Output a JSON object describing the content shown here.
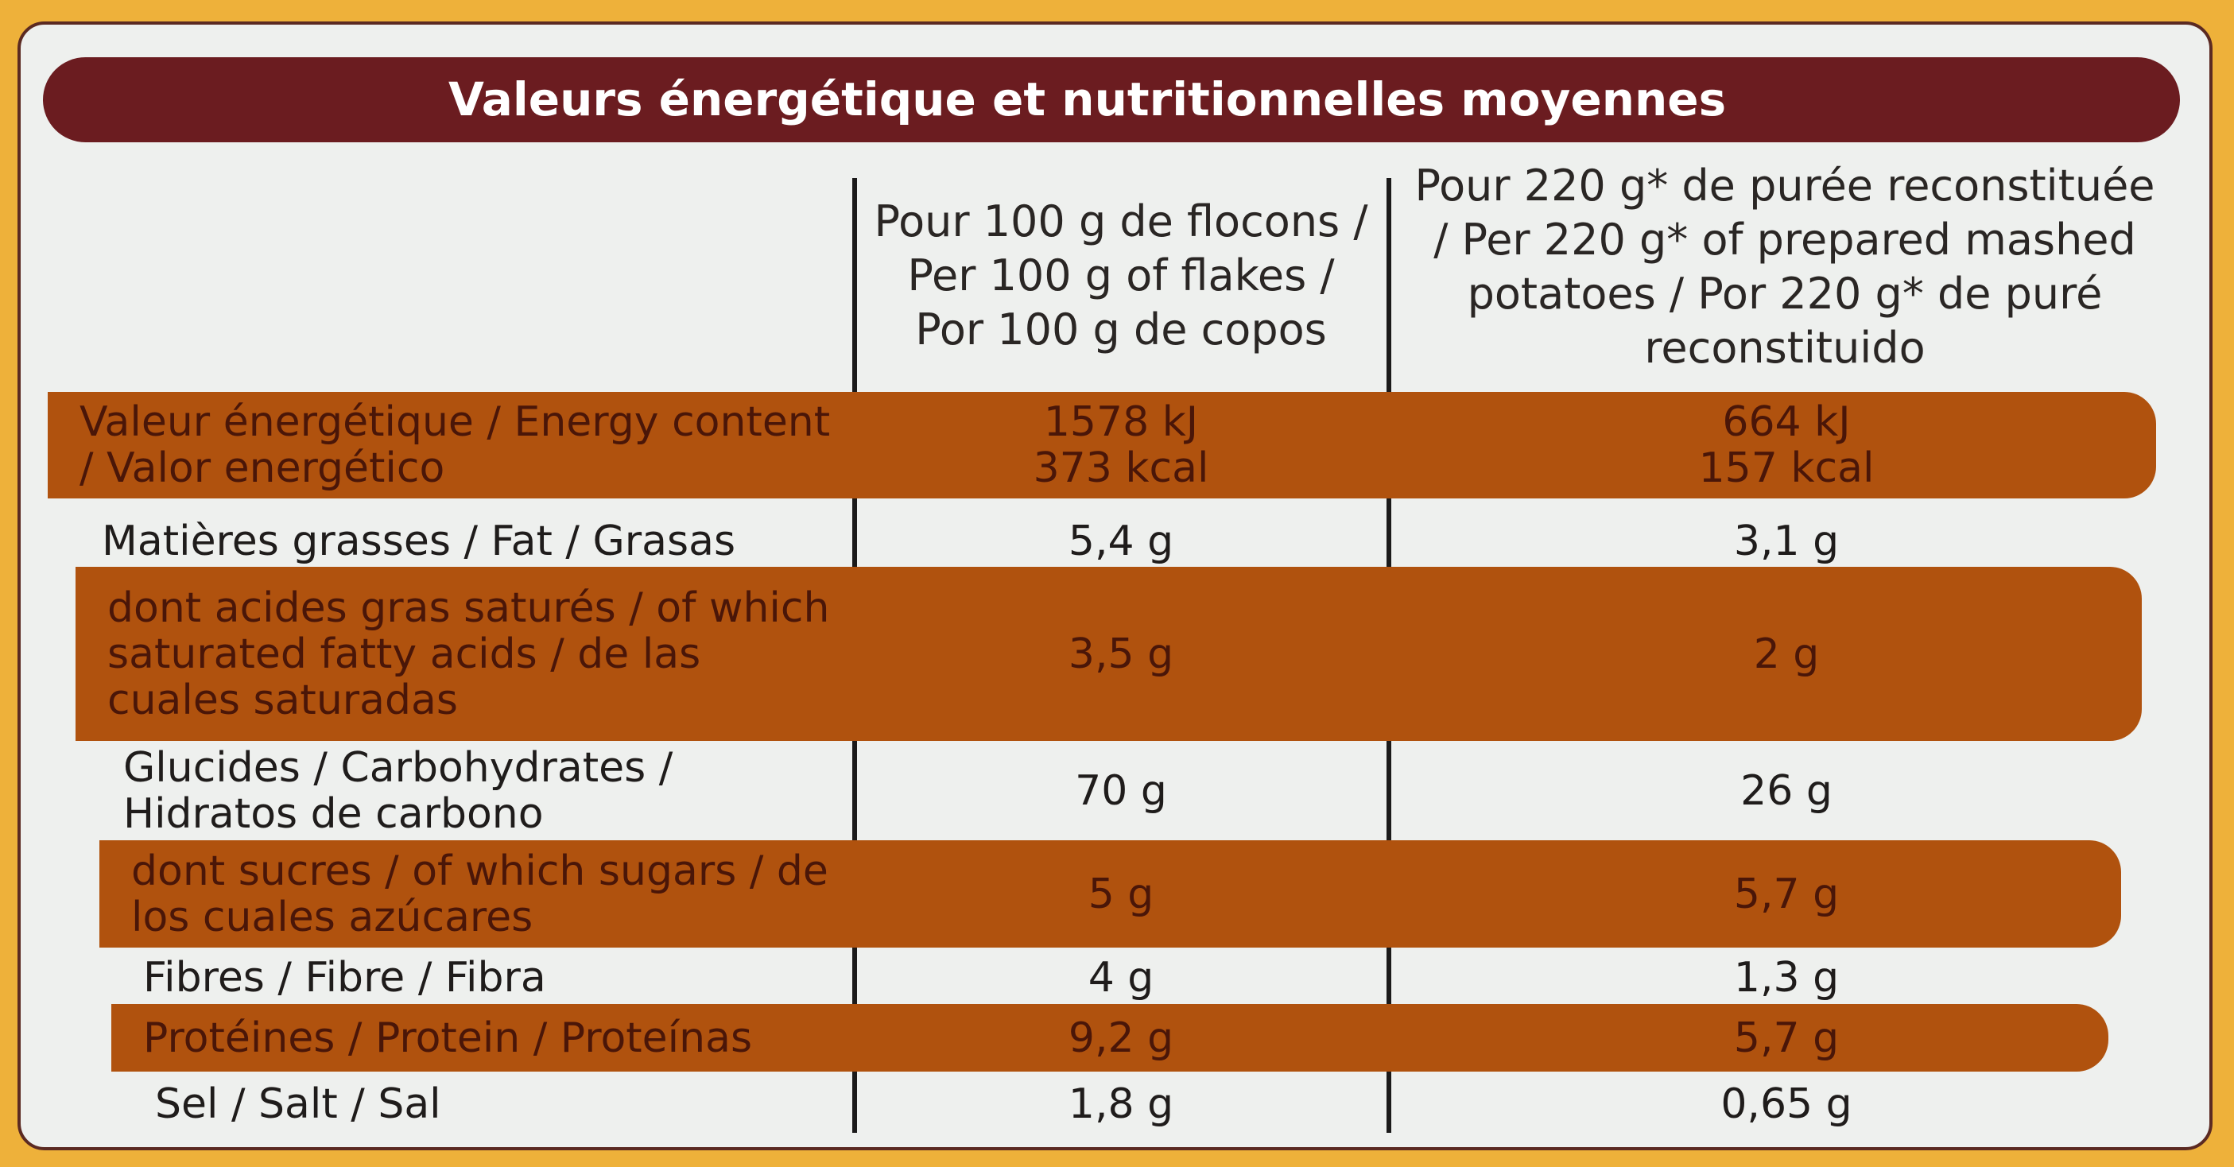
{
  "header": {
    "title": "Valeurs énergétique et nutritionnelles moyennes"
  },
  "table": {
    "columns": [
      "Pour 100 g de flocons / Per 100 g of flakes / Por 100 g de copos",
      "Pour 220 g* de purée reconstituée / Per 220 g* of prepared mashed potatoes / Por 220 g* de puré reconstituido"
    ],
    "rows": [
      {
        "label": "Valeur énergétique / Energy content / Valor energético",
        "cells": [
          [
            "1578 kJ",
            "373 kcal"
          ],
          [
            "664 kJ",
            "157 kcal"
          ]
        ]
      },
      {
        "label": "Matières grasses / Fat / Grasas",
        "cells": [
          [
            "5,4 g"
          ],
          [
            "3,1 g"
          ]
        ]
      },
      {
        "label": "dont acides gras saturés / of which saturated fatty acids / de las cuales saturadas",
        "cells": [
          [
            "3,5 g"
          ],
          [
            "2 g"
          ]
        ]
      },
      {
        "label": "Glucides / Carbohydrates / Hidratos de carbono",
        "cells": [
          [
            "70 g"
          ],
          [
            "26 g"
          ]
        ]
      },
      {
        "label": "dont sucres / of which sugars / de los cuales azúcares",
        "cells": [
          [
            "5 g"
          ],
          [
            "5,7 g"
          ]
        ]
      },
      {
        "label": "Fibres / Fibre / Fibra",
        "cells": [
          [
            "4 g"
          ],
          [
            "1,3 g"
          ]
        ]
      },
      {
        "label": "Protéines / Protein / Proteínas",
        "cells": [
          [
            "9,2 g"
          ],
          [
            "5,7 g"
          ]
        ]
      },
      {
        "label": "Sel / Salt / Sal",
        "cells": [
          [
            "1,8 g"
          ],
          [
            "0,65 g"
          ]
        ]
      }
    ]
  }
}
